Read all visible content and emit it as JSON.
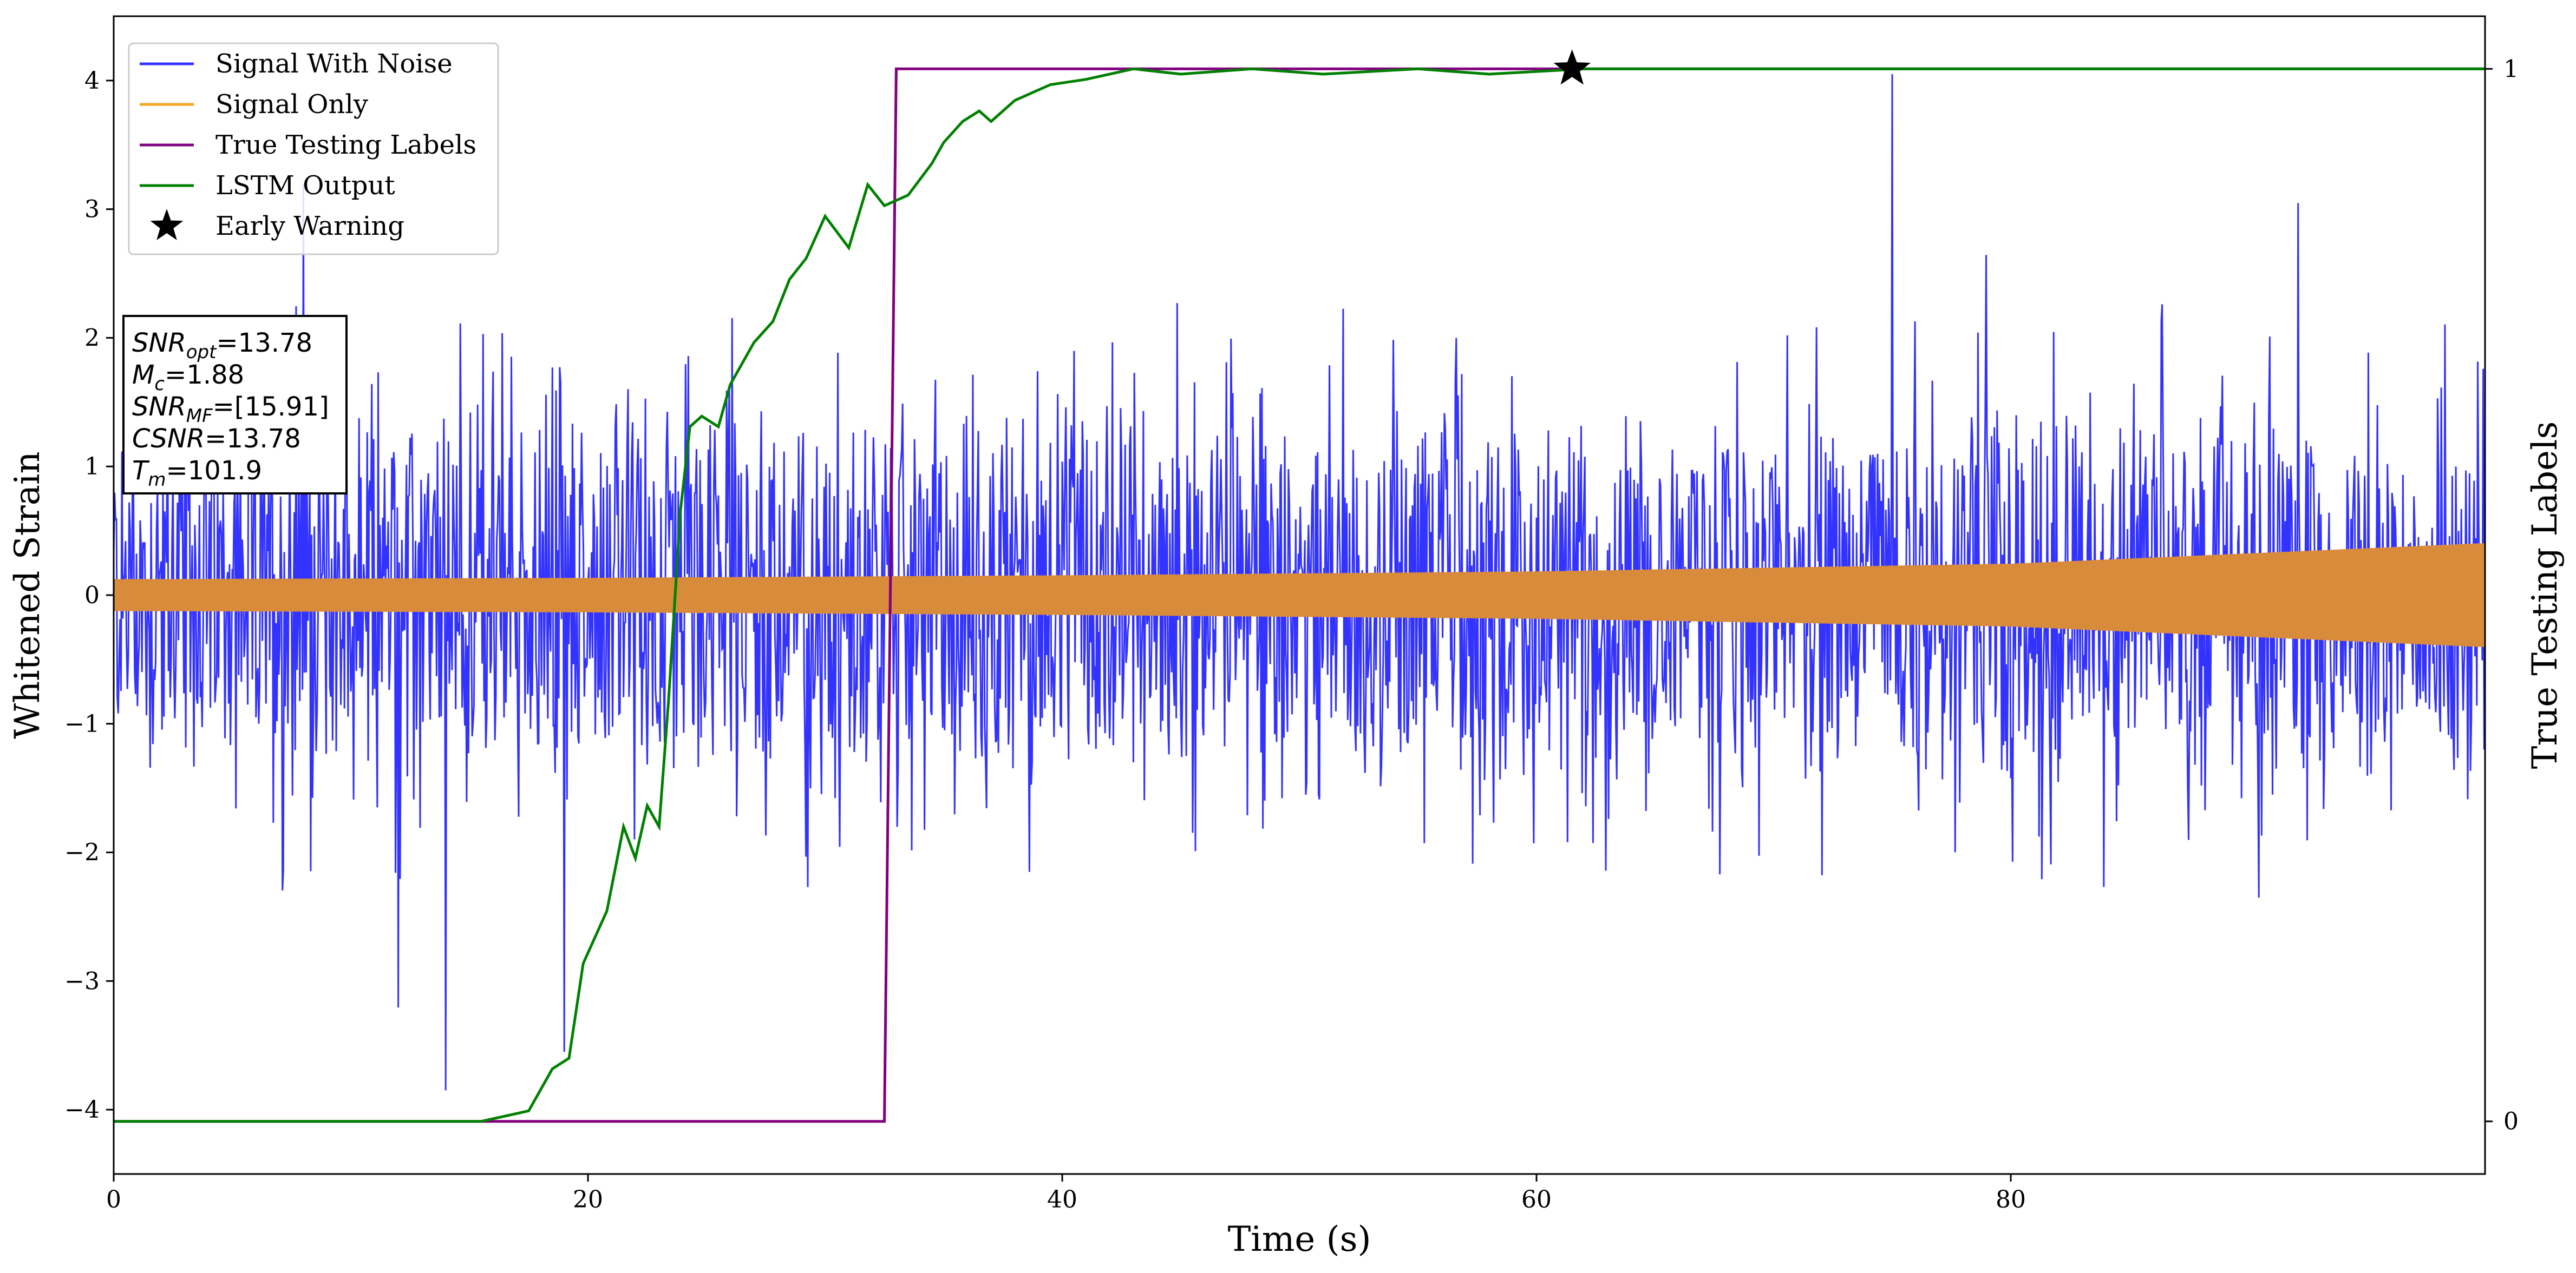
{
  "chart_data": {
    "type": "line",
    "xlabel": "Time (s)",
    "ylabel": "Whitened Strain",
    "y2label": "True Testing Labels",
    "xlim": [
      0,
      100
    ],
    "ylim": [
      -4.5,
      4.5
    ],
    "y2lim": [
      -0.05,
      1.05
    ],
    "xticks": [
      0,
      20,
      40,
      60,
      80
    ],
    "yticks": [
      -4,
      -3,
      -2,
      -1,
      0,
      1,
      2,
      3,
      4
    ],
    "y2ticks": [
      0,
      1
    ],
    "grid": false,
    "legend_position": "top-left",
    "legend": [
      {
        "label": "Signal With Noise",
        "color": "#3333ff",
        "marker": "line"
      },
      {
        "label": "Signal Only",
        "color": "#f5a623",
        "marker": "line"
      },
      {
        "label": "True Testing Labels",
        "color": "#800080",
        "marker": "line"
      },
      {
        "label": "LSTM Output",
        "color": "#008000",
        "marker": "line"
      },
      {
        "label": "Early Warning",
        "color": "#000000",
        "marker": "star"
      }
    ],
    "series": [
      {
        "name": "Signal With Noise",
        "axis": "left",
        "color": "#3333ff",
        "description_kind": "noise band",
        "typical_abs_max": 2.0,
        "peaks": [
          {
            "x": 14.0,
            "y": -3.85
          },
          {
            "x": 75.0,
            "y": 4.05
          },
          {
            "x": 8.0,
            "y": 3.2
          },
          {
            "x": 19.0,
            "y": -3.55
          }
        ]
      },
      {
        "name": "Signal Only",
        "axis": "left",
        "color": "#d88b3a",
        "envelope": {
          "x": [
            0,
            20,
            40,
            60,
            80,
            100
          ],
          "amp": [
            0.12,
            0.13,
            0.15,
            0.18,
            0.24,
            0.4
          ]
        }
      },
      {
        "name": "True Testing Labels",
        "axis": "right",
        "color": "#800080",
        "x": [
          0,
          32.5,
          33.0,
          100
        ],
        "y": [
          0,
          0,
          1,
          1
        ]
      },
      {
        "name": "LSTM Output",
        "axis": "right",
        "color": "#008000",
        "x": [
          0,
          15.5,
          17.5,
          18.5,
          19.2,
          19.8,
          20.8,
          21.5,
          22.0,
          22.5,
          23.0,
          23.4,
          23.9,
          24.3,
          24.8,
          25.5,
          26.0,
          26.5,
          27.0,
          27.8,
          28.5,
          29.2,
          30.0,
          31.0,
          31.8,
          32.5,
          33.5,
          34.5,
          35.0,
          35.8,
          36.5,
          37.0,
          38.0,
          39.5,
          41.0,
          43.0,
          45.0,
          48.0,
          51.0,
          55.0,
          58.0,
          62.0,
          70.0,
          100.0
        ],
        "y": [
          0,
          0,
          0.01,
          0.05,
          0.06,
          0.15,
          0.2,
          0.28,
          0.25,
          0.3,
          0.28,
          0.4,
          0.58,
          0.66,
          0.67,
          0.66,
          0.7,
          0.72,
          0.74,
          0.76,
          0.8,
          0.82,
          0.86,
          0.83,
          0.89,
          0.87,
          0.88,
          0.91,
          0.93,
          0.95,
          0.96,
          0.95,
          0.97,
          0.985,
          0.99,
          1.0,
          0.995,
          1.0,
          0.995,
          1.0,
          0.995,
          1.0,
          1.0,
          1.0
        ]
      },
      {
        "name": "Early Warning",
        "axis": "right",
        "color": "#000000",
        "marker": "star",
        "x": [
          61.5
        ],
        "y": [
          1.0
        ]
      }
    ],
    "annotation": {
      "lines": [
        {
          "sym": "SNR",
          "sub": "opt",
          "value": "=13.78"
        },
        {
          "sym": "M",
          "sub": "c",
          "value": "=1.88"
        },
        {
          "sym": "SNR",
          "sub": "MF",
          "value": "=[15.91]"
        },
        {
          "sym": "CSNR",
          "sub": "",
          "value": "=13.78"
        },
        {
          "sym": "T",
          "sub": "m",
          "value": "=101.9"
        }
      ]
    }
  }
}
